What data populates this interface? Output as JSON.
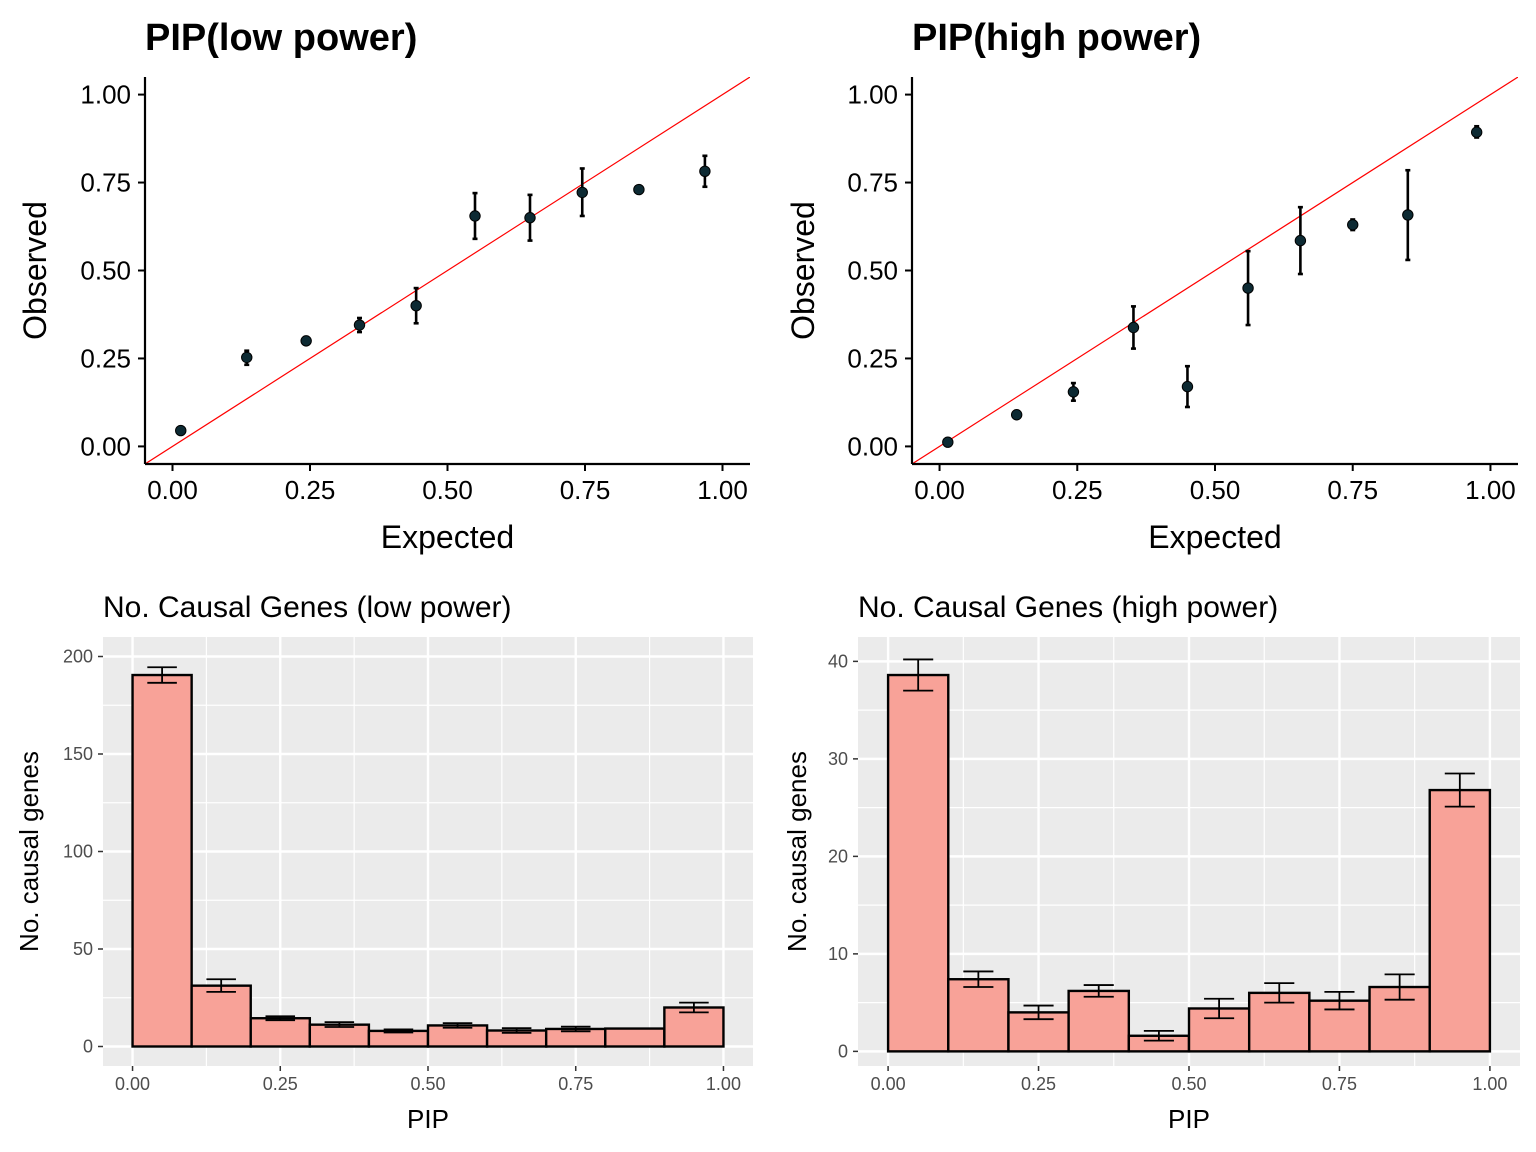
{
  "chart_data": [
    {
      "type": "scatter",
      "title": "PIP(low power)",
      "xlabel": "Expected",
      "ylabel": "Observed",
      "xlim": [
        -0.05,
        1.05
      ],
      "ylim": [
        -0.05,
        1.05
      ],
      "xticks": [
        "0.00",
        "0.25",
        "0.50",
        "0.75",
        "1.00"
      ],
      "yticks": [
        "0.00",
        "0.25",
        "0.50",
        "0.75",
        "1.00"
      ],
      "reference_line": "y = x",
      "reference_line_color": "#ff0000",
      "point_color": "#0d2a33",
      "grid": false,
      "points": [
        {
          "x": 0.015,
          "y": 0.045,
          "lo": 0.045,
          "hi": 0.045
        },
        {
          "x": 0.135,
          "y": 0.253,
          "lo": 0.232,
          "hi": 0.272
        },
        {
          "x": 0.243,
          "y": 0.3,
          "lo": 0.3,
          "hi": 0.3
        },
        {
          "x": 0.34,
          "y": 0.345,
          "lo": 0.325,
          "hi": 0.365
        },
        {
          "x": 0.443,
          "y": 0.4,
          "lo": 0.35,
          "hi": 0.45
        },
        {
          "x": 0.55,
          "y": 0.655,
          "lo": 0.59,
          "hi": 0.72
        },
        {
          "x": 0.65,
          "y": 0.65,
          "lo": 0.585,
          "hi": 0.715
        },
        {
          "x": 0.745,
          "y": 0.722,
          "lo": 0.655,
          "hi": 0.79
        },
        {
          "x": 0.848,
          "y": 0.73,
          "lo": 0.73,
          "hi": 0.73
        },
        {
          "x": 0.968,
          "y": 0.782,
          "lo": 0.738,
          "hi": 0.826
        }
      ]
    },
    {
      "type": "scatter",
      "title": "PIP(high power)",
      "xlabel": "Expected",
      "ylabel": "Observed",
      "xlim": [
        -0.05,
        1.05
      ],
      "ylim": [
        -0.05,
        1.05
      ],
      "xticks": [
        "0.00",
        "0.25",
        "0.50",
        "0.75",
        "1.00"
      ],
      "yticks": [
        "0.00",
        "0.25",
        "0.50",
        "0.75",
        "1.00"
      ],
      "reference_line": "y = x",
      "reference_line_color": "#ff0000",
      "point_color": "#0d2a33",
      "grid": false,
      "points": [
        {
          "x": 0.015,
          "y": 0.012,
          "lo": 0.012,
          "hi": 0.012
        },
        {
          "x": 0.14,
          "y": 0.09,
          "lo": 0.09,
          "hi": 0.09
        },
        {
          "x": 0.243,
          "y": 0.155,
          "lo": 0.13,
          "hi": 0.18
        },
        {
          "x": 0.352,
          "y": 0.338,
          "lo": 0.278,
          "hi": 0.398
        },
        {
          "x": 0.45,
          "y": 0.17,
          "lo": 0.112,
          "hi": 0.228
        },
        {
          "x": 0.56,
          "y": 0.45,
          "lo": 0.345,
          "hi": 0.555
        },
        {
          "x": 0.655,
          "y": 0.585,
          "lo": 0.49,
          "hi": 0.68
        },
        {
          "x": 0.75,
          "y": 0.63,
          "lo": 0.615,
          "hi": 0.645
        },
        {
          "x": 0.85,
          "y": 0.658,
          "lo": 0.53,
          "hi": 0.785
        },
        {
          "x": 0.975,
          "y": 0.893,
          "lo": 0.878,
          "hi": 0.91
        }
      ]
    },
    {
      "type": "bar",
      "title": "No. Causal Genes (low power)",
      "xlabel": "PIP",
      "ylabel": "No. causal genes",
      "xlim": [
        -0.05,
        1.05
      ],
      "ylim": [
        -10,
        210
      ],
      "xticks": [
        "0.00",
        "0.25",
        "0.50",
        "0.75",
        "1.00"
      ],
      "yticks": [
        "0",
        "50",
        "100",
        "150",
        "200"
      ],
      "bar_fill": "#f8a298",
      "panel_background": "#ebebeb",
      "grid": true,
      "bins": [
        {
          "x0": 0.0,
          "x1": 0.1,
          "value": 190.5,
          "lo": 186.5,
          "hi": 194.5
        },
        {
          "x0": 0.1,
          "x1": 0.2,
          "value": 31.2,
          "lo": 28.0,
          "hi": 34.5
        },
        {
          "x0": 0.2,
          "x1": 0.3,
          "value": 14.5,
          "lo": 13.5,
          "hi": 15.5
        },
        {
          "x0": 0.3,
          "x1": 0.4,
          "value": 11.2,
          "lo": 10.0,
          "hi": 12.5
        },
        {
          "x0": 0.4,
          "x1": 0.5,
          "value": 8.0,
          "lo": 7.2,
          "hi": 8.8
        },
        {
          "x0": 0.5,
          "x1": 0.6,
          "value": 10.8,
          "lo": 9.6,
          "hi": 12.0
        },
        {
          "x0": 0.6,
          "x1": 0.7,
          "value": 8.2,
          "lo": 7.0,
          "hi": 9.4
        },
        {
          "x0": 0.7,
          "x1": 0.8,
          "value": 9.0,
          "lo": 7.8,
          "hi": 10.2
        },
        {
          "x0": 0.8,
          "x1": 0.9,
          "value": 9.2,
          "lo": 9.2,
          "hi": 9.2
        },
        {
          "x0": 0.9,
          "x1": 1.0,
          "value": 20.0,
          "lo": 17.5,
          "hi": 22.5
        }
      ]
    },
    {
      "type": "bar",
      "title": "No. Causal Genes (high power)",
      "xlabel": "PIP",
      "ylabel": "No. causal genes",
      "xlim": [
        -0.05,
        1.05
      ],
      "ylim": [
        -1.5,
        42.5
      ],
      "xticks": [
        "0.00",
        "0.25",
        "0.50",
        "0.75",
        "1.00"
      ],
      "yticks": [
        "0",
        "10",
        "20",
        "30",
        "40"
      ],
      "bar_fill": "#f8a298",
      "panel_background": "#ebebeb",
      "grid": true,
      "bins": [
        {
          "x0": 0.0,
          "x1": 0.1,
          "value": 38.6,
          "lo": 37.0,
          "hi": 40.2
        },
        {
          "x0": 0.1,
          "x1": 0.2,
          "value": 7.4,
          "lo": 6.6,
          "hi": 8.2
        },
        {
          "x0": 0.2,
          "x1": 0.3,
          "value": 4.0,
          "lo": 3.3,
          "hi": 4.7
        },
        {
          "x0": 0.3,
          "x1": 0.4,
          "value": 6.2,
          "lo": 5.6,
          "hi": 6.8
        },
        {
          "x0": 0.4,
          "x1": 0.5,
          "value": 1.6,
          "lo": 1.1,
          "hi": 2.1
        },
        {
          "x0": 0.5,
          "x1": 0.6,
          "value": 4.4,
          "lo": 3.4,
          "hi": 5.4
        },
        {
          "x0": 0.6,
          "x1": 0.7,
          "value": 6.0,
          "lo": 5.0,
          "hi": 7.0
        },
        {
          "x0": 0.7,
          "x1": 0.8,
          "value": 5.2,
          "lo": 4.3,
          "hi": 6.1
        },
        {
          "x0": 0.8,
          "x1": 0.9,
          "value": 6.6,
          "lo": 5.3,
          "hi": 7.9
        },
        {
          "x0": 0.9,
          "x1": 1.0,
          "value": 26.8,
          "lo": 25.1,
          "hi": 28.5
        }
      ]
    }
  ]
}
